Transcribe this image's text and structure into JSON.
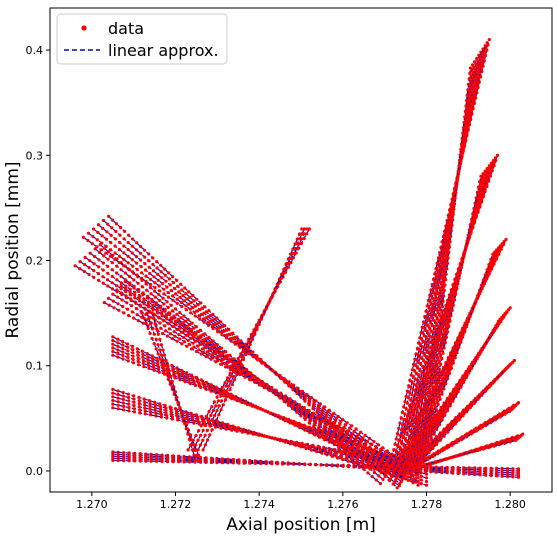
{
  "chart_data": {
    "type": "scatter",
    "title": "",
    "xlabel": "Axial position [m]",
    "ylabel": "Radial position [mm]",
    "xlim": [
      1.269,
      1.281
    ],
    "ylim": [
      -0.02,
      0.44
    ],
    "xticks": [
      "1.270",
      "1.272",
      "1.274",
      "1.276",
      "1.278",
      "1.280"
    ],
    "xtick_values": [
      1.27,
      1.272,
      1.274,
      1.276,
      1.278,
      1.28
    ],
    "yticks": [
      "0.0",
      "0.1",
      "0.2",
      "0.3",
      "0.4"
    ],
    "ytick_values": [
      0.0,
      0.1,
      0.2,
      0.3,
      0.4
    ],
    "grid": false,
    "legend": {
      "placement": "top-left",
      "entries": [
        {
          "label": "data",
          "style": "red-dots"
        },
        {
          "label": "linear approx.",
          "style": "blue-dashed"
        }
      ]
    },
    "colors": {
      "data": "#ff0000",
      "approx": "#0000cc"
    },
    "bundles": [
      {
        "x0": 1.2771,
        "y0": 0.0,
        "x1": 1.2795,
        "y1": 0.41,
        "count": 10,
        "dx": 0.0001,
        "dy": 0.003
      },
      {
        "x0": 1.2771,
        "y0": 0.0,
        "x1": 1.2797,
        "y1": 0.3,
        "count": 9,
        "dx": 0.0001,
        "dy": 0.0025
      },
      {
        "x0": 1.2772,
        "y0": 0.0,
        "x1": 1.2799,
        "y1": 0.22,
        "count": 8,
        "dx": 9e-05,
        "dy": 0.002
      },
      {
        "x0": 1.2773,
        "y0": 0.0,
        "x1": 1.28,
        "y1": 0.155,
        "count": 8,
        "dx": 8e-05,
        "dy": 0.0018
      },
      {
        "x0": 1.2774,
        "y0": 0.0,
        "x1": 1.2801,
        "y1": 0.105,
        "count": 7,
        "dx": 8e-05,
        "dy": 0.0016
      },
      {
        "x0": 1.2775,
        "y0": 0.0,
        "x1": 1.2802,
        "y1": 0.065,
        "count": 7,
        "dx": 7e-05,
        "dy": 0.0014
      },
      {
        "x0": 1.2776,
        "y0": 0.0,
        "x1": 1.2803,
        "y1": 0.035,
        "count": 6,
        "dx": 7e-05,
        "dy": 0.0012
      },
      {
        "x0": 1.2705,
        "y0": 0.01,
        "x1": 1.2802,
        "y1": 0.002,
        "count": 5,
        "dx": 0.0,
        "dy": 0.002
      },
      {
        "x0": 1.2705,
        "y0": 0.06,
        "x1": 1.278,
        "y1": 0.004,
        "count": 6,
        "dx": 0.0,
        "dy": 0.0035
      },
      {
        "x0": 1.2705,
        "y0": 0.11,
        "x1": 1.2778,
        "y1": 0.004,
        "count": 6,
        "dx": 0.0,
        "dy": 0.0035
      },
      {
        "x0": 1.2703,
        "y0": 0.16,
        "x1": 1.2776,
        "y1": 0.006,
        "count": 6,
        "dx": 0.0001,
        "dy": 0.004
      },
      {
        "x0": 1.2696,
        "y0": 0.195,
        "x1": 1.2772,
        "y1": 0.008,
        "count": 6,
        "dx": 0.00012,
        "dy": 0.004
      },
      {
        "x0": 1.2698,
        "y0": 0.222,
        "x1": 1.2776,
        "y1": 0.004,
        "count": 6,
        "dx": 0.00012,
        "dy": 0.004
      },
      {
        "x0": 1.2723,
        "y0": 0.02,
        "x1": 1.2752,
        "y1": 0.23,
        "count": 4,
        "dx": 0.00012,
        "dy": 0.0
      },
      {
        "x0": 1.2712,
        "y0": 0.15,
        "x1": 1.2726,
        "y1": 0.01,
        "count": 3,
        "dx": 0.00012,
        "dy": 0.0
      }
    ]
  }
}
